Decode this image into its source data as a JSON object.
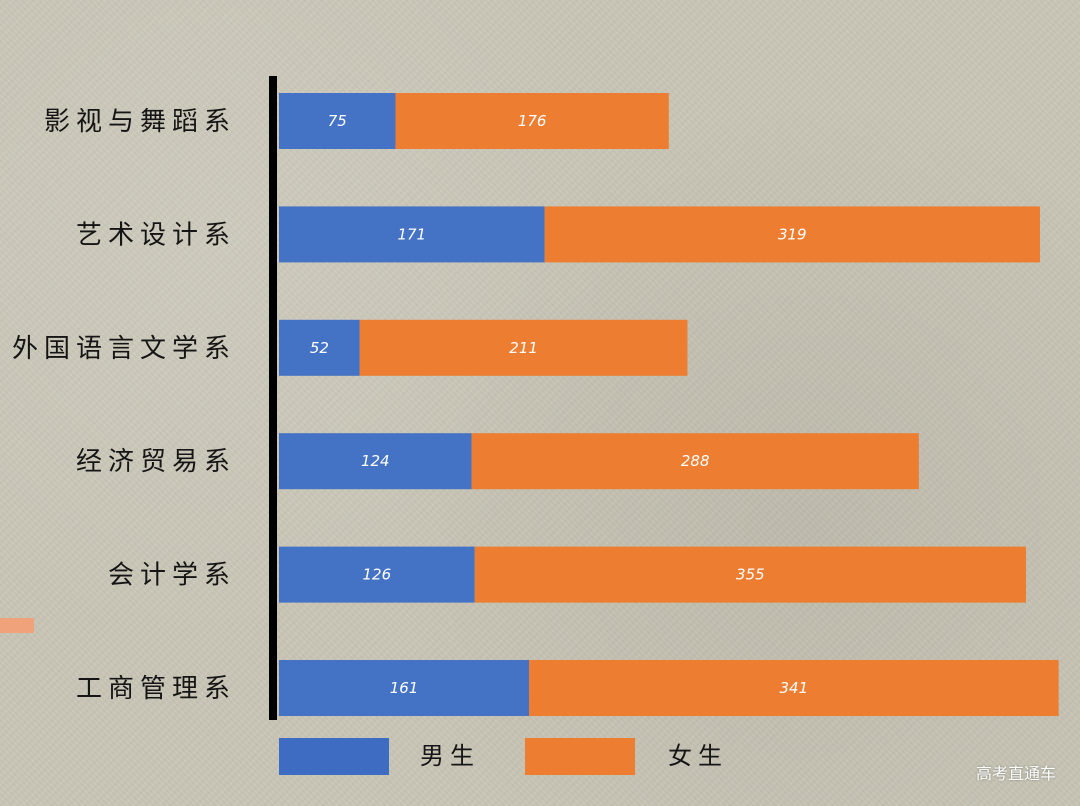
{
  "chart_data": {
    "type": "bar",
    "orientation": "horizontal",
    "stacked": true,
    "categories": [
      "影视与舞蹈系",
      "艺术设计系",
      "外国语言文学系",
      "经济贸易系",
      "会计学系",
      "工商管理系"
    ],
    "series": [
      {
        "name": "男生",
        "values": [
          75,
          171,
          52,
          124,
          126,
          161
        ],
        "color": "#4472c4"
      },
      {
        "name": "女生",
        "values": [
          176,
          319,
          211,
          288,
          355,
          341
        ],
        "color": "#ed7d31"
      }
    ],
    "xlim": [
      0,
      490
    ],
    "grid": false,
    "legend": "bottom"
  },
  "watermark": "高考直通车",
  "colors": {
    "background": "#c9c6b7",
    "axis": "#000000",
    "side_mark": "#f0a37a"
  }
}
